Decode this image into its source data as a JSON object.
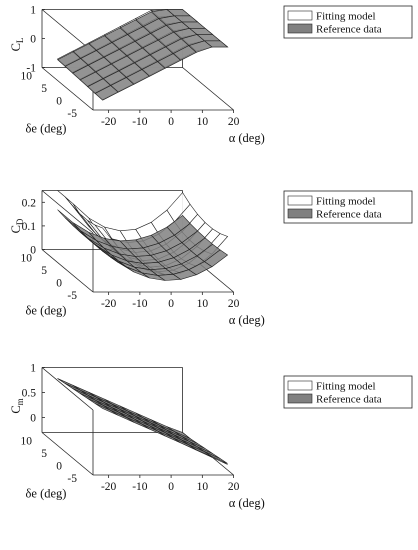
{
  "chart_data": [
    {
      "type": "surface",
      "zlabel_main": "C",
      "zlabel_sub": "L",
      "xlabel": "α (deg)",
      "ylabel": "δe (deg)",
      "xticks": [
        "-20",
        "-10",
        "0",
        "10",
        "20"
      ],
      "yticks": [
        "-5",
        "0",
        "5",
        "10"
      ],
      "zticks": [
        "-1",
        "0",
        "1"
      ],
      "xlim": [
        -25,
        20
      ],
      "ylim": [
        -7,
        10
      ],
      "zlim": [
        -1,
        1
      ],
      "legend": {
        "position": "top-right",
        "entries": [
          "Fitting model",
          "Reference data"
        ]
      },
      "series": [
        {
          "name": "Fitting model",
          "color": "#ffffff",
          "alpha": [
            -20,
            20
          ],
          "z_at_alpha_min": -0.78,
          "z_at_alpha_max": 1.45,
          "elevator_slope_per_deg": 0.0075
        },
        {
          "name": "Reference data",
          "color": "#808080",
          "alpha": [
            -20,
            20
          ],
          "z_at_alpha_min": -0.8,
          "z_at_alpha_max": 1.4,
          "elevator_slope_per_deg": 0.007
        }
      ]
    },
    {
      "type": "surface",
      "zlabel_main": "C",
      "zlabel_sub": "D",
      "xlabel": "α (deg)",
      "ylabel": "δe (deg)",
      "xticks": [
        "-20",
        "-10",
        "0",
        "10",
        "20"
      ],
      "yticks": [
        "-5",
        "0",
        "5",
        "10"
      ],
      "zticks": [
        "0",
        "0.1",
        "0.2"
      ],
      "xlim": [
        -25,
        20
      ],
      "ylim": [
        -7,
        10
      ],
      "zlim": [
        0,
        0.25
      ],
      "legend": {
        "position": "top-right",
        "entries": [
          "Fitting model",
          "Reference data"
        ]
      },
      "series": [
        {
          "name": "Fitting model",
          "color": "#ffffff",
          "z_min": 0.03,
          "z_alpha_curvature": 0.00045,
          "z_elevator_curvature": 0.0006
        },
        {
          "name": "Reference data",
          "color": "#808080",
          "z_min": 0.02,
          "z_alpha_curvature": 0.0003,
          "z_elevator_curvature": 0.0002
        }
      ]
    },
    {
      "type": "surface",
      "zlabel_main": "C",
      "zlabel_sub": "m",
      "xlabel": "α (deg)",
      "ylabel": "δe (deg)",
      "xticks": [
        "-20",
        "-10",
        "0",
        "10",
        "20"
      ],
      "yticks": [
        "-5",
        "0",
        "5",
        "10"
      ],
      "zticks": [
        "0",
        "0.5",
        "1"
      ],
      "xlim": [
        -25,
        20
      ],
      "ylim": [
        -7,
        10
      ],
      "zlim": [
        -0.3,
        1
      ],
      "legend": {
        "position": "top-right",
        "entries": [
          "Fitting model",
          "Reference data"
        ]
      },
      "series": [
        {
          "name": "Fitting model",
          "color": "#ffffff",
          "z_at_alpha_min": 0.9,
          "z_at_alpha_max": -0.25,
          "elevator_slope_per_deg": -0.012
        },
        {
          "name": "Reference data",
          "color": "#808080",
          "z_at_alpha_min": 0.88,
          "z_at_alpha_max": -0.22,
          "elevator_slope_per_deg": -0.01
        }
      ]
    }
  ]
}
